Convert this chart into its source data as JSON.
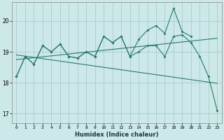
{
  "xlabel": "Humidex (Indice chaleur)",
  "bg_color": "#cce8e8",
  "grid_color": "#aacccc",
  "line_color": "#2a7a6a",
  "ylim": [
    16.7,
    20.6
  ],
  "xlim": [
    -0.5,
    23.5
  ],
  "yticks": [
    17,
    18,
    19,
    20
  ],
  "x_ticks": [
    0,
    1,
    2,
    3,
    4,
    5,
    6,
    7,
    8,
    9,
    10,
    11,
    12,
    13,
    14,
    15,
    16,
    17,
    18,
    19,
    20,
    21,
    22,
    23
  ],
  "line_spiky_high": [
    18.2,
    18.85,
    18.6,
    19.2,
    19.0,
    19.25,
    18.85,
    18.8,
    19.0,
    18.85,
    19.5,
    19.3,
    19.5,
    18.85,
    19.4,
    19.7,
    19.85,
    19.6,
    20.4,
    19.65,
    19.5,
    null,
    null,
    null
  ],
  "line_spiky_low": [
    18.2,
    18.85,
    18.6,
    19.2,
    19.0,
    19.25,
    18.85,
    18.8,
    19.0,
    18.85,
    19.5,
    19.3,
    19.5,
    18.85,
    19.0,
    19.2,
    19.2,
    18.85,
    19.5,
    19.55,
    19.3,
    18.85,
    18.2,
    17.1
  ],
  "trend_up": [
    18.75,
    18.78,
    18.81,
    18.84,
    18.87,
    18.9,
    18.93,
    18.96,
    18.99,
    19.02,
    19.05,
    19.08,
    19.11,
    19.14,
    19.17,
    19.2,
    19.23,
    19.26,
    19.29,
    19.32,
    19.35,
    19.38,
    19.41,
    19.44
  ],
  "trend_down": [
    18.9,
    18.86,
    18.82,
    18.78,
    18.74,
    18.7,
    18.66,
    18.62,
    18.58,
    18.54,
    18.5,
    18.46,
    18.42,
    18.38,
    18.34,
    18.3,
    18.26,
    18.22,
    18.18,
    18.14,
    18.1,
    18.06,
    18.02,
    17.98
  ]
}
